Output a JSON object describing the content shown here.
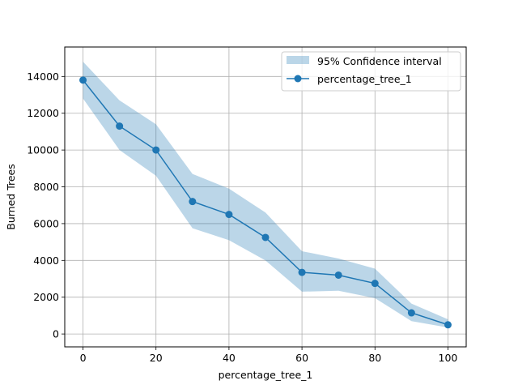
{
  "chart_data": {
    "type": "line",
    "title": "",
    "xlabel": "percentage_tree_1",
    "ylabel": "Burned Trees",
    "xlim": [
      -5,
      105
    ],
    "ylim": [
      -700,
      15600
    ],
    "xticks": [
      0,
      20,
      40,
      60,
      80,
      100
    ],
    "yticks": [
      0,
      2000,
      4000,
      6000,
      8000,
      10000,
      12000,
      14000
    ],
    "grid": true,
    "legend_position": "top-right",
    "x": [
      0,
      10,
      20,
      30,
      40,
      50,
      60,
      70,
      80,
      90,
      100
    ],
    "series": [
      {
        "name": "percentage_tree_1",
        "type": "line",
        "marker": "circle",
        "color": "#1f77b4",
        "values": [
          13800,
          11300,
          10000,
          7200,
          6500,
          5250,
          3350,
          3200,
          2750,
          1150,
          500
        ]
      }
    ],
    "band": {
      "name": "95% Confidence interval",
      "color": "#1f77b4",
      "lower": [
        12800,
        10000,
        8600,
        5750,
        5100,
        4000,
        2300,
        2350,
        1950,
        700,
        350
      ],
      "upper": [
        14800,
        12700,
        11400,
        8700,
        7900,
        6600,
        4500,
        4100,
        3550,
        1650,
        800
      ]
    }
  }
}
